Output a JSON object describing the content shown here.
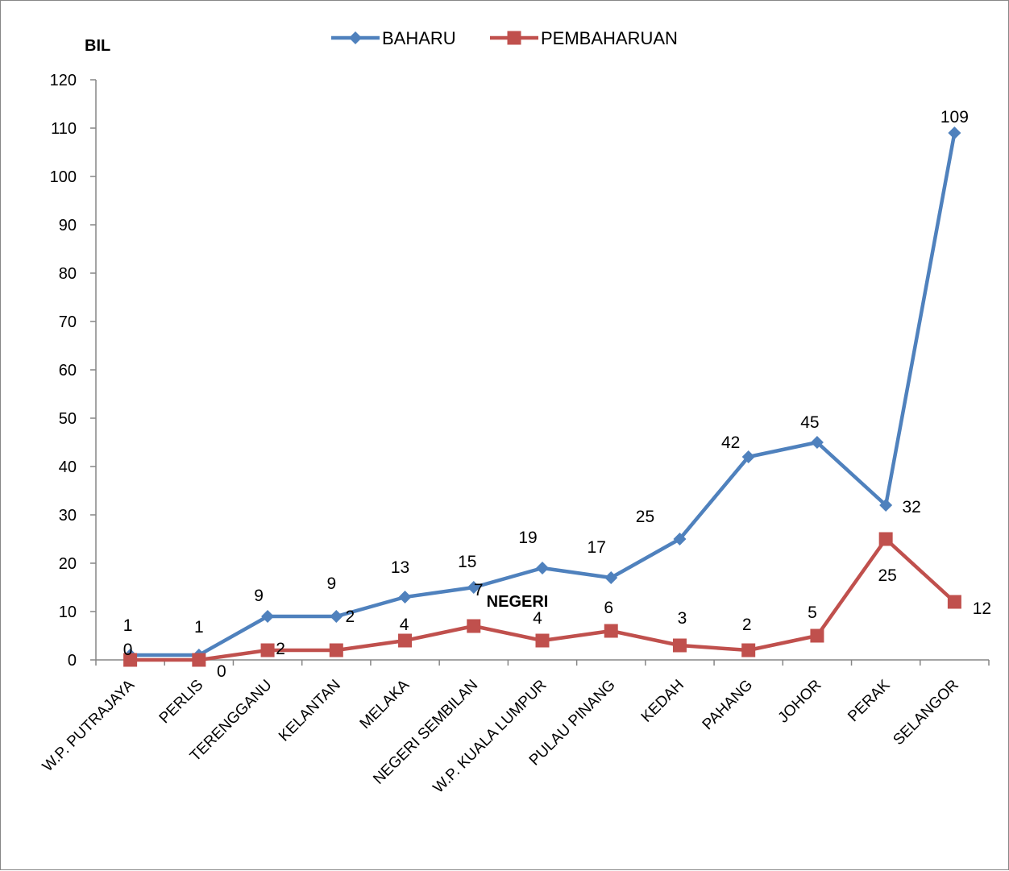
{
  "chart_data": {
    "type": "line",
    "title": "",
    "ylabel": "BIL",
    "xlabel": "NEGERI",
    "ylim": [
      0,
      120
    ],
    "ytick_step": 10,
    "grid": false,
    "legend_position": "top-center",
    "categories": [
      "W.P. PUTRAJAYA",
      "PERLIS",
      "TERENGGANU",
      "KELANTAN",
      "MELAKA",
      "NEGERI SEMBILAN",
      "W.P. KUALA LUMPUR",
      "PULAU PINANG",
      "KEDAH",
      "PAHANG",
      "JOHOR",
      "PERAK",
      "SELANGOR"
    ],
    "series": [
      {
        "name": "BAHARU",
        "color": "#4F81BD",
        "marker": "diamond",
        "values": [
          1,
          1,
          9,
          9,
          13,
          15,
          19,
          17,
          25,
          42,
          45,
          32,
          109
        ]
      },
      {
        "name": "PEMBAHARUAN",
        "color": "#C0504D",
        "marker": "square",
        "values": [
          0,
          0,
          2,
          2,
          4,
          7,
          4,
          6,
          3,
          2,
          5,
          25,
          12
        ]
      }
    ]
  }
}
